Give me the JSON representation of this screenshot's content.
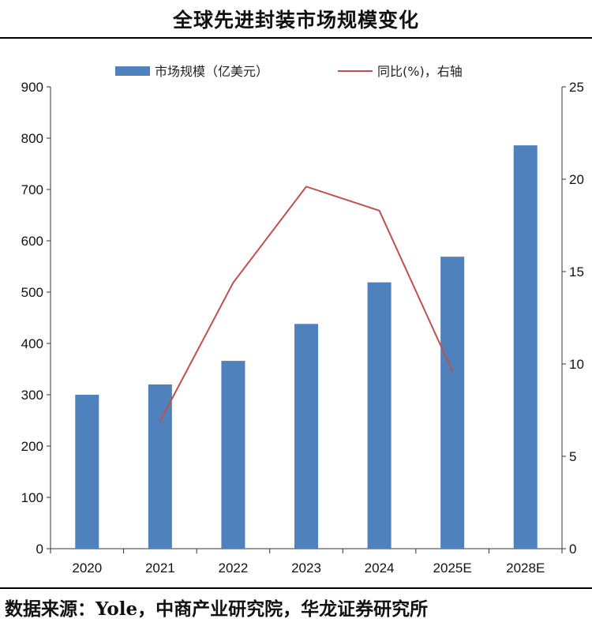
{
  "title": "全球先进封装市场规模变化",
  "source": "数据来源：Yole，中商产业研究院，华龙证券研究所",
  "chart_data": {
    "type": "bar",
    "categories": [
      "2020",
      "2021",
      "2022",
      "2023",
      "2024",
      "2025E",
      "2028E"
    ],
    "series": [
      {
        "name": "市场规模（亿美元）",
        "type": "bar",
        "axis": "left",
        "color": "#4F81BD",
        "values": [
          300,
          320,
          366,
          438,
          519,
          569,
          786
        ]
      },
      {
        "name": "同比(%)，右轴",
        "type": "line",
        "axis": "right",
        "color": "#C0504D",
        "values": [
          null,
          6.9,
          14.4,
          19.6,
          18.3,
          9.6,
          null
        ]
      }
    ],
    "y_left": {
      "min": 0,
      "max": 900,
      "ticks": [
        0,
        100,
        200,
        300,
        400,
        500,
        600,
        700,
        800,
        900
      ]
    },
    "y_right": {
      "min": 0,
      "max": 25,
      "ticks": [
        0,
        5,
        10,
        15,
        20,
        25
      ]
    },
    "legend_position": "top-center",
    "grid": false
  }
}
